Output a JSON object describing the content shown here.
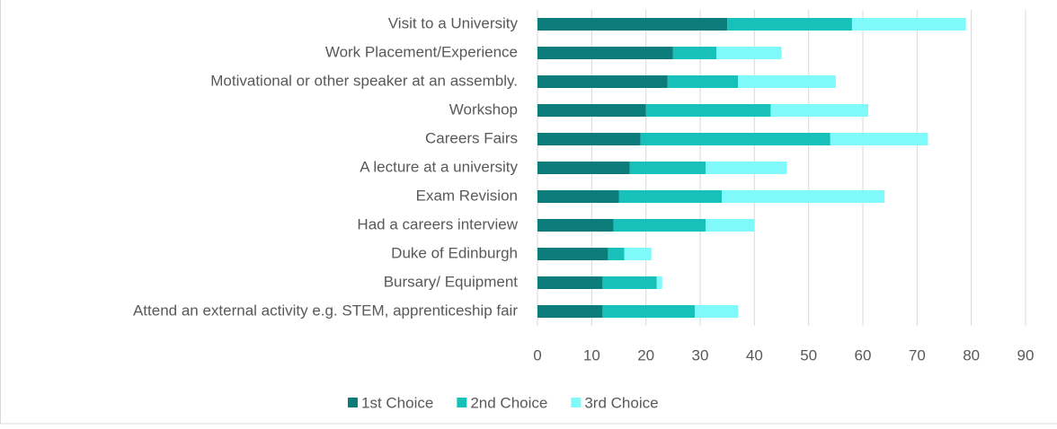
{
  "chart_data": {
    "type": "stacked-bar-horizontal",
    "categories": [
      "Visit to a University",
      "Work Placement/Experience",
      "Motivational or other speaker at an assembly.",
      "Workshop",
      "Careers Fairs",
      "A lecture at a university",
      "Exam Revision",
      "Had a careers interview",
      "Duke of Edinburgh",
      "Bursary/ Equipment",
      "Attend an external activity e.g. STEM, apprenticeship fair"
    ],
    "series": [
      {
        "name": "1st Choice",
        "color": "#0b7c7a",
        "values": [
          35,
          25,
          24,
          20,
          19,
          17,
          15,
          14,
          13,
          12,
          12
        ]
      },
      {
        "name": "2nd Choice",
        "color": "#17c1b9",
        "values": [
          23,
          8,
          13,
          23,
          35,
          14,
          19,
          17,
          3,
          10,
          17
        ]
      },
      {
        "name": "3rd Choice",
        "color": "#80f9fa",
        "values": [
          21,
          12,
          18,
          18,
          18,
          15,
          30,
          9,
          5,
          1,
          8
        ]
      }
    ],
    "xlim": [
      0,
      90
    ],
    "xticks": [
      0,
      10,
      20,
      30,
      40,
      50,
      60,
      70,
      80,
      90
    ],
    "grid": true,
    "legend": "bottom"
  }
}
